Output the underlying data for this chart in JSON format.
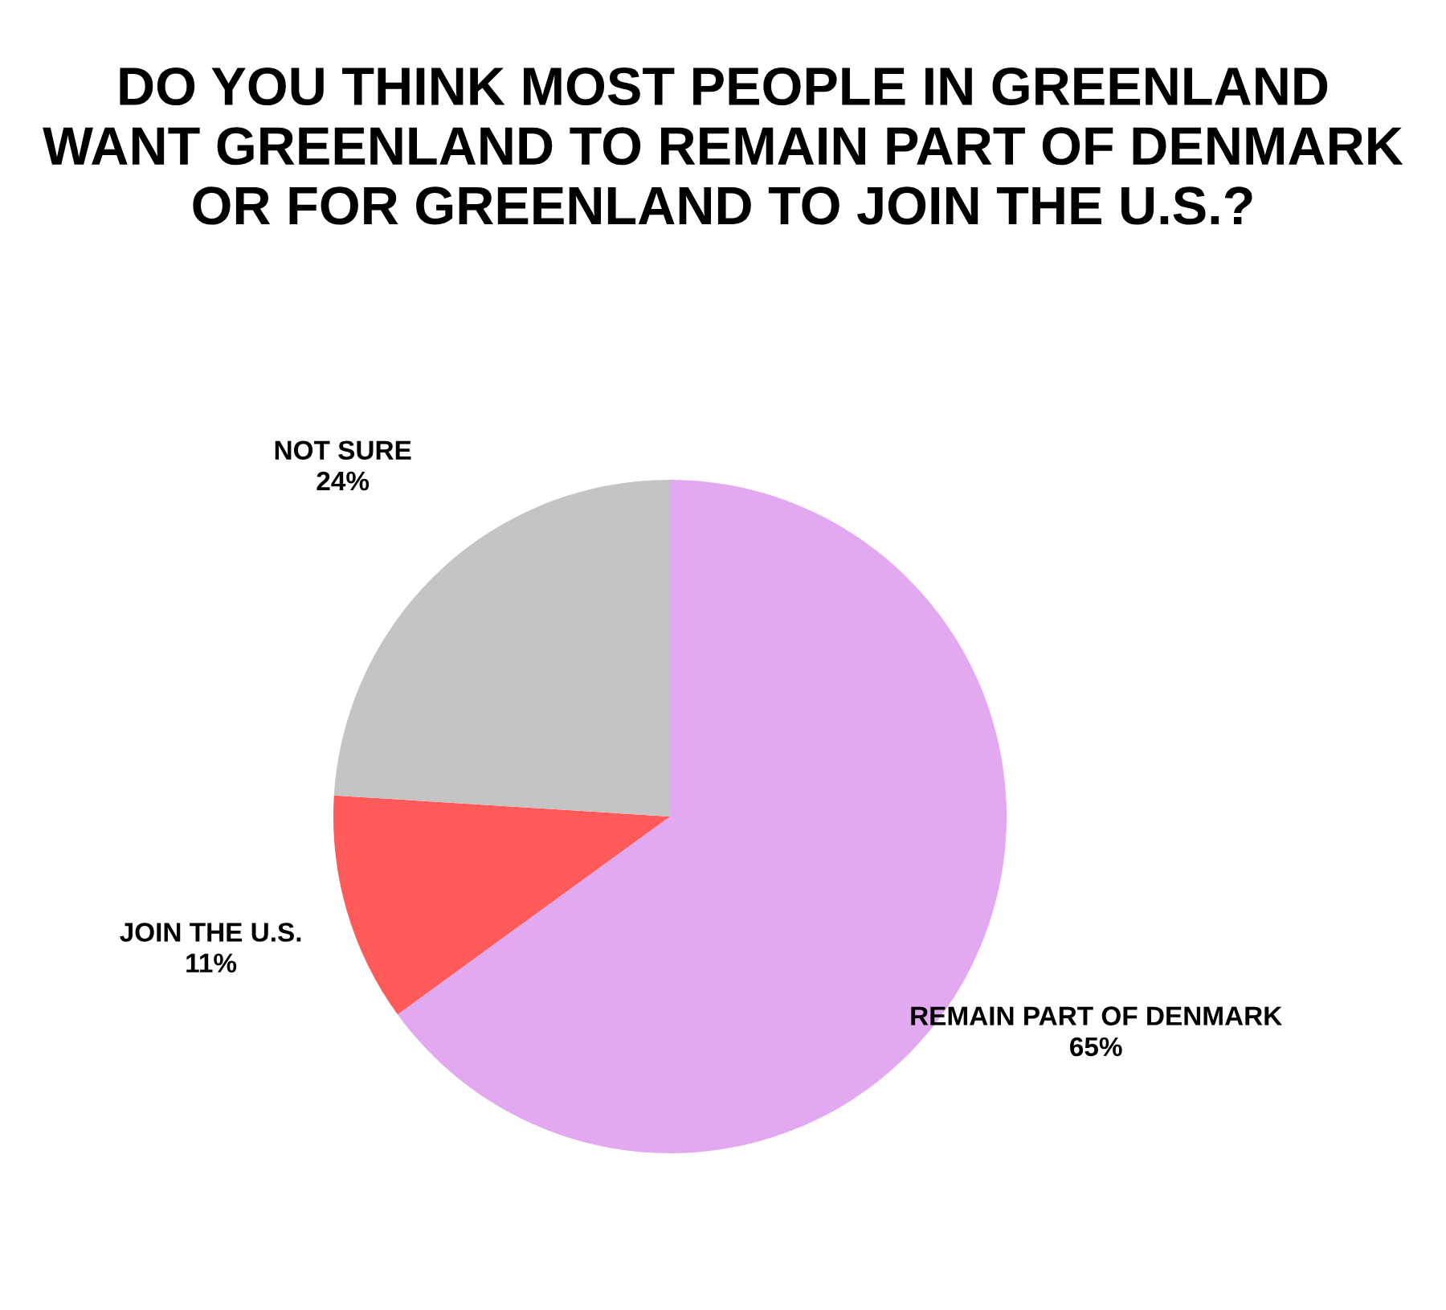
{
  "chart_data": {
    "type": "pie",
    "title": "DO YOU THINK MOST PEOPLE IN GREENLAND\nWANT GREENLAND TO REMAIN PART OF DENMARK\nOR FOR GREENLAND TO JOIN THE U.S.?",
    "categories": [
      "REMAIN PART OF DENMARK",
      "JOIN THE U.S.",
      "NOT SURE"
    ],
    "values": [
      65,
      11,
      24
    ],
    "colors": [
      "#e2a9f0",
      "#ff5a5a",
      "#c4c4c4"
    ],
    "value_labels": [
      "65%",
      "11%",
      "24%"
    ]
  }
}
